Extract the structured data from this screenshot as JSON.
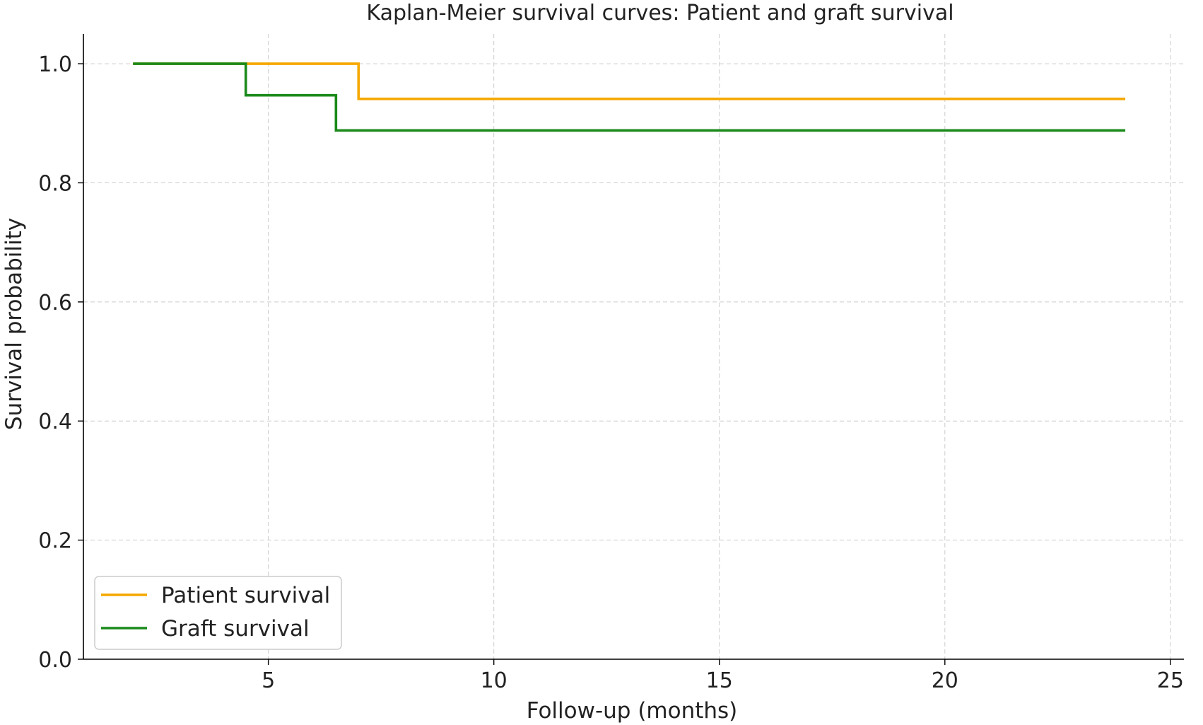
{
  "chart_data": {
    "type": "line",
    "step": "post",
    "title": "Kaplan-Meier survival curves: Patient and graft survival",
    "xlabel": "Follow-up (months)",
    "ylabel": "Survival probability",
    "xlim": [
      0.9,
      25.3
    ],
    "ylim": [
      0.0,
      1.05
    ],
    "xticks": [
      5,
      10,
      15,
      20,
      25
    ],
    "xtick_labels": [
      "5",
      "10",
      "15",
      "20",
      "25"
    ],
    "yticks": [
      0.0,
      0.2,
      0.4,
      0.6,
      0.8,
      1.0
    ],
    "ytick_labels": [
      "0.0",
      "0.2",
      "0.4",
      "0.6",
      "0.8",
      "1.0"
    ],
    "grid": true,
    "legend_position": "lower-left",
    "series": [
      {
        "name": "Patient survival",
        "color": "#f5a800",
        "x": [
          2,
          7,
          24
        ],
        "y": [
          1.0,
          0.941,
          0.941
        ]
      },
      {
        "name": "Graft survival",
        "color": "#1a8a1a",
        "x": [
          2,
          4.5,
          6.5,
          24
        ],
        "y": [
          1.0,
          0.947,
          0.888,
          0.888
        ]
      }
    ]
  }
}
